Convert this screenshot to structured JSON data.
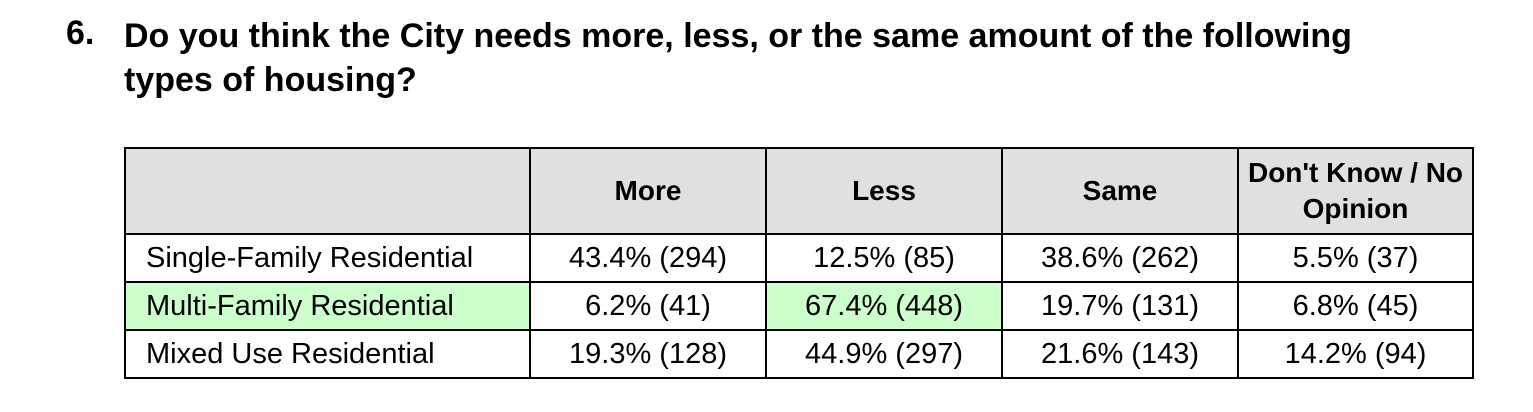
{
  "question": {
    "number": "6.",
    "text": "Do you think the City needs more, less, or the same amount of the following types of housing?"
  },
  "table": {
    "header": [
      "",
      "More",
      "Less",
      "Same",
      "Don't Know / No Opinion"
    ],
    "rows": [
      [
        "Single-Family Residential",
        "43.4% (294)",
        "12.5% (85)",
        "38.6% (262)",
        "5.5% (37)"
      ],
      [
        "Multi-Family Residential",
        "6.2% (41)",
        "67.4% (448)",
        "19.7% (131)",
        "6.8% (45)"
      ],
      [
        "Mixed Use Residential",
        "19.3% (128)",
        "44.9% (297)",
        "21.6% (143)",
        "14.2% (94)"
      ]
    ]
  }
}
